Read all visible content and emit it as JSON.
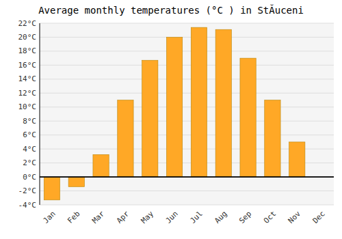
{
  "chart_data": {
    "type": "bar",
    "title": "Average monthly temperatures (°C ) in StĂuceni",
    "categories": [
      "Jan",
      "Feb",
      "Mar",
      "Apr",
      "May",
      "Jun",
      "Jul",
      "Aug",
      "Sep",
      "Oct",
      "Nov",
      "Dec"
    ],
    "values": [
      -3.3,
      -1.4,
      3.2,
      11.0,
      16.7,
      20.0,
      21.4,
      21.1,
      17.0,
      11.0,
      5.0,
      0.0
    ],
    "color": "#FFA826",
    "ylim": [
      -4,
      22
    ],
    "yticks": [
      {
        "value": -4,
        "label": "-4°C"
      },
      {
        "value": -2,
        "label": "-2°C"
      },
      {
        "value": 0,
        "label": "0°C"
      },
      {
        "value": 2,
        "label": "2°C"
      },
      {
        "value": 4,
        "label": "4°C"
      },
      {
        "value": 6,
        "label": "6°C"
      },
      {
        "value": 8,
        "label": "8°C"
      },
      {
        "value": 10,
        "label": "10°C"
      },
      {
        "value": 12,
        "label": "12°C"
      },
      {
        "value": 14,
        "label": "14°C"
      },
      {
        "value": 16,
        "label": "16°C"
      },
      {
        "value": 18,
        "label": "18°C"
      },
      {
        "value": 20,
        "label": "20°C"
      },
      {
        "value": 22,
        "label": "22°C"
      }
    ],
    "grid": true
  }
}
